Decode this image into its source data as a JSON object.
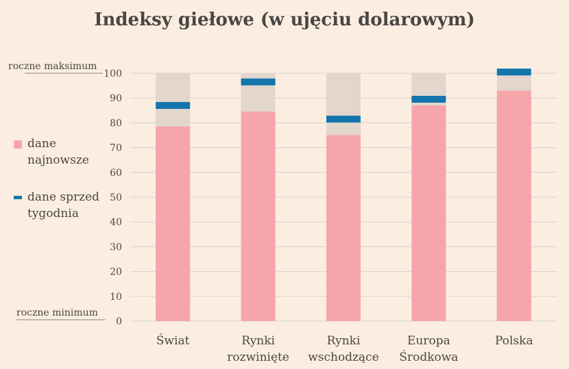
{
  "title": "Indeksy giełowe (w ujęciu dolarowym)",
  "legend": {
    "latest_line1": "dane",
    "latest_line2": "najnowsze",
    "prev_line1": "dane sprzed",
    "prev_line2": "tygodnia"
  },
  "annotations": {
    "max": "roczne maksimum",
    "min": "roczne minimum"
  },
  "colors": {
    "background": "#fbeee1",
    "range": "#e2d6cd",
    "latest": "#f6a5ab",
    "previous": "#1375ab",
    "grid": "#d9d1ca",
    "text": "#4a4643"
  },
  "chart_data": {
    "type": "bar",
    "title": "Indeksy giełowe (w ujęciu dolarowym)",
    "categories": [
      [
        "Świat"
      ],
      [
        "Rynki",
        "rozwinięte"
      ],
      [
        "Rynki",
        "wschodzące"
      ],
      [
        "Europa",
        "Środkowa"
      ],
      [
        "Polska"
      ]
    ],
    "ylim": [
      0,
      100
    ],
    "yticks": [
      0,
      10,
      20,
      30,
      40,
      50,
      60,
      70,
      80,
      90,
      100
    ],
    "grid": true,
    "legend_position": "left",
    "series": [
      {
        "name": "dane najnowsze",
        "values": [
          78.5,
          84.5,
          75,
          87,
          93
        ]
      },
      {
        "name": "dane sprzed tygodnia",
        "values": [
          87,
          96.5,
          81.5,
          89.5,
          100.5
        ]
      }
    ],
    "range": {
      "min": 0,
      "max": 100
    }
  }
}
